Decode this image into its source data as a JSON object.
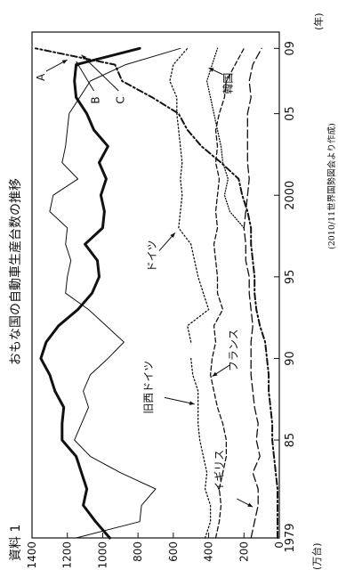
{
  "chart_data": {
    "type": "line",
    "title": "おもな国の自動車生産台数の推移",
    "label": "資料 1",
    "source": "(2010/11世界国勢図会より作成)",
    "ylabel": "(万台)",
    "xunit": "(年)",
    "xlim": [
      1979,
      2010
    ],
    "ylim": [
      0,
      1400
    ],
    "x_tick_labels": [
      "1979",
      "85",
      "90",
      "95",
      "2000",
      "05",
      "09"
    ],
    "x_tick_years": [
      1979,
      1985,
      1990,
      1995,
      2000,
      2005,
      2009
    ],
    "y_ticks": [
      0,
      200,
      400,
      600,
      800,
      1000,
      1200,
      1400
    ],
    "series": [
      {
        "name": "A",
        "style": "thick-solid",
        "years": [
          1979,
          1980,
          1981,
          1982,
          1983,
          1984,
          1985,
          1986,
          1987,
          1988,
          1989,
          1990,
          1991,
          1992,
          1993,
          1994,
          1995,
          1996,
          1997,
          1998,
          1999,
          2000,
          2001,
          2002,
          2003,
          2004,
          2005,
          2006,
          2007,
          2008,
          2009
        ],
        "values": [
          960,
          1040,
          1110,
          1090,
          1120,
          1150,
          1230,
          1230,
          1220,
          1270,
          1300,
          1350,
          1320,
          1250,
          1140,
          1060,
          1020,
          1030,
          1100,
          1000,
          990,
          1010,
          980,
          1020,
          970,
          1050,
          1090,
          1150,
          1160,
          1150,
          790
        ]
      },
      {
        "name": "B",
        "style": "thin-solid",
        "years": [
          1979,
          1980,
          1981,
          1982,
          1983,
          1984,
          1985,
          1986,
          1987,
          1988,
          1989,
          1990,
          1991,
          1992,
          1993,
          1994,
          1995,
          1996,
          1997,
          1998,
          1999,
          2000,
          2001,
          2002,
          2003,
          2004,
          2005,
          2006,
          2007,
          2008,
          2009
        ],
        "values": [
          1150,
          790,
          780,
          700,
          900,
          1070,
          1160,
          1120,
          1080,
          1110,
          1070,
          970,
          880,
          980,
          1080,
          1210,
          1200,
          1180,
          1210,
          1200,
          1300,
          1280,
          1140,
          1230,
          1210,
          1200,
          1190,
          1130,
          1070,
          870,
          560
        ]
      },
      {
        "name": "C",
        "style": "dash-dot",
        "years": [
          1979,
          1980,
          1981,
          1982,
          1983,
          1984,
          1985,
          1986,
          1987,
          1988,
          1989,
          1990,
          1991,
          1992,
          1993,
          1994,
          1995,
          1996,
          1997,
          1998,
          1999,
          2000,
          2001,
          2002,
          2003,
          2004,
          2005,
          2006,
          2007,
          2008,
          2009
        ],
        "values": [
          10,
          10,
          10,
          10,
          20,
          30,
          40,
          40,
          50,
          60,
          60,
          70,
          80,
          110,
          130,
          140,
          140,
          150,
          160,
          160,
          180,
          210,
          230,
          330,
          440,
          520,
          570,
          720,
          890,
          930,
          1380
        ]
      },
      {
        "name": "ドイツ",
        "label": "ドイツ",
        "style": "dotted",
        "years": [
          1991,
          1992,
          1993,
          1994,
          1995,
          1996,
          1997,
          1998,
          1999,
          2000,
          2001,
          2002,
          2003,
          2004,
          2005,
          2006,
          2007,
          2008,
          2009
        ],
        "values": [
          500,
          520,
          400,
          430,
          460,
          480,
          500,
          570,
          560,
          550,
          560,
          550,
          560,
          570,
          580,
          580,
          620,
          600,
          520
        ]
      },
      {
        "name": "旧西ドイツ",
        "label": "旧西ドイツ",
        "style": "dotted",
        "years": [
          1979,
          1980,
          1981,
          1982,
          1983,
          1984,
          1985,
          1986,
          1987,
          1988,
          1989,
          1990
        ],
        "values": [
          420,
          390,
          390,
          420,
          410,
          430,
          450,
          460,
          460,
          460,
          490,
          500
        ]
      },
      {
        "name": "フランス",
        "label": "フランス",
        "style": "short-dash",
        "years": [
          1979,
          1980,
          1981,
          1982,
          1983,
          1984,
          1985,
          1986,
          1987,
          1988,
          1989,
          1990,
          1991,
          1992,
          1993,
          1994,
          1995,
          1996,
          1997,
          1998,
          1999,
          2000,
          2001,
          2002,
          2003,
          2004,
          2005,
          2006,
          2007,
          2008,
          2009
        ],
        "values": [
          360,
          340,
          330,
          340,
          320,
          300,
          300,
          320,
          350,
          370,
          390,
          380,
          360,
          370,
          320,
          350,
          350,
          360,
          370,
          350,
          360,
          350,
          340,
          360,
          350,
          360,
          340,
          310,
          300,
          250,
          200
        ]
      },
      {
        "name": "イギリス",
        "label": "イギリス",
        "style": "long-dash",
        "years": [
          1979,
          1980,
          1981,
          1982,
          1983,
          1984,
          1985,
          1986,
          1987,
          1988,
          1989,
          1990,
          1991,
          1992,
          1993,
          1994,
          1995,
          1996,
          1997,
          1998,
          1999,
          2000,
          2001,
          2002,
          2003,
          2004,
          2005,
          2006,
          2007,
          2008,
          2009
        ],
        "values": [
          160,
          140,
          120,
          120,
          150,
          110,
          130,
          120,
          140,
          150,
          160,
          160,
          160,
          150,
          160,
          170,
          170,
          190,
          190,
          200,
          190,
          180,
          170,
          180,
          180,
          180,
          180,
          160,
          170,
          150,
          100
        ]
      },
      {
        "name": "韓国",
        "label": "韓国",
        "style": "fine-dot",
        "years": [
          1998,
          1999,
          2000,
          2001,
          2002,
          2003,
          2004,
          2005,
          2006,
          2007,
          2008,
          2009
        ],
        "values": [
          200,
          280,
          310,
          290,
          320,
          330,
          350,
          370,
          390,
          410,
          380,
          350
        ]
      }
    ],
    "callouts": [
      "A",
      "B",
      "C"
    ]
  }
}
